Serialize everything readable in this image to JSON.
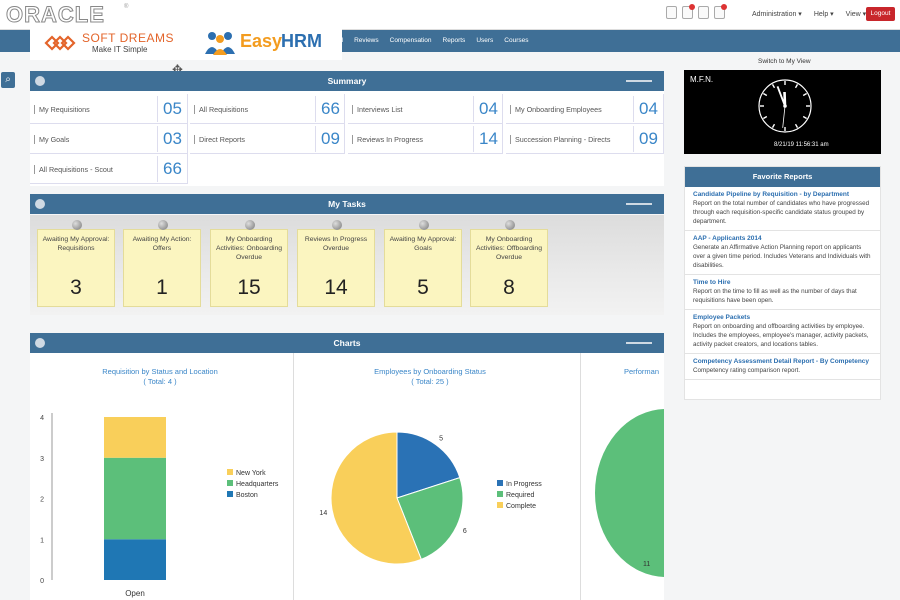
{
  "header": {
    "oracle_logo": "ORACLE",
    "oracle_reg": "®",
    "menu": [
      "Administration ▾",
      "Help ▾",
      "View ▾"
    ],
    "logout_label": "Logout",
    "nav_items": [
      "al",
      "Reviews",
      "Compensation",
      "Reports",
      "Users",
      "Courses"
    ]
  },
  "brand": {
    "softdreams_name": "SOFT DREAMS",
    "softdreams_tagline": "Make IT Simple",
    "easy": "Easy",
    "hrm": "HRM"
  },
  "summary": {
    "title": "Summary",
    "cells": [
      {
        "label": "My Requisitions",
        "value": "05"
      },
      {
        "label": "All Requisitions",
        "value": "66"
      },
      {
        "label": "Interviews List",
        "value": "04"
      },
      {
        "label": "My Onboarding Employees",
        "value": "04"
      },
      {
        "label": "My Goals",
        "value": "03"
      },
      {
        "label": "Direct Reports",
        "value": "09"
      },
      {
        "label": "Reviews In Progress",
        "value": "14"
      },
      {
        "label": "Succession Planning - Directs",
        "value": "09"
      },
      {
        "label": "All Requisitions - Scout",
        "value": "66"
      }
    ]
  },
  "tasks": {
    "title": "My Tasks",
    "notes": [
      {
        "label": "Awaiting My Approval: Requisitions",
        "count": "3"
      },
      {
        "label": "Awaiting My Action: Offers",
        "count": "1"
      },
      {
        "label": "My Onboarding Activities: Onboarding Overdue",
        "count": "15"
      },
      {
        "label": "Reviews In Progress Overdue",
        "count": "14"
      },
      {
        "label": "Awaiting My Approval: Goals",
        "count": "5"
      },
      {
        "label": "My Onboarding Activities: Offboarding Overdue",
        "count": "8"
      }
    ]
  },
  "charts": {
    "title": "Charts",
    "chart1_title": "Requisition by Status and Location",
    "chart1_subtitle": "( Total: 4 )",
    "chart2_title": "Employees by Onboarding Status",
    "chart2_subtitle": "( Total: 25 )",
    "chart3_title": "Performan"
  },
  "chart_data": [
    {
      "type": "bar",
      "title": "Requisition by Status and Location",
      "subtitle": "( Total: 4 )",
      "categories": [
        "Open"
      ],
      "stacked": true,
      "ylim": [
        0,
        4
      ],
      "yticks": [
        "0",
        "1",
        "2",
        "3",
        "4"
      ],
      "series": [
        {
          "name": "Boston",
          "values": [
            1
          ],
          "color": "#1f77b4"
        },
        {
          "name": "Headquarters",
          "values": [
            2
          ],
          "color": "#5cbf7a"
        },
        {
          "name": "New York",
          "values": [
            1
          ],
          "color": "#f9cf5a"
        }
      ],
      "legend_order": [
        "New York",
        "Headquarters",
        "Boston"
      ],
      "legend": "right"
    },
    {
      "type": "pie",
      "title": "Employees by Onboarding Status",
      "subtitle": "( Total: 25 )",
      "labels": [
        "In Progress",
        "Required",
        "Complete"
      ],
      "values": [
        5,
        6,
        14
      ],
      "colors": [
        "#2a72b5",
        "#5cbf7a",
        "#f9cf5a"
      ],
      "legend": "right"
    },
    {
      "type": "pie",
      "title": "Performan",
      "values": [
        11
      ],
      "colors": [
        "#5cbf7a"
      ],
      "partial_view": true
    }
  ],
  "right": {
    "switch_label": "Switch to My View",
    "clock_name": "M.F.N.",
    "clock_time": "8/21/19 11:56:31 am",
    "clock_hour": 11,
    "clock_minute": 56,
    "clock_second": 31,
    "favorites_title": "Favorite Reports",
    "reports": [
      {
        "title": "Candidate Pipeline by Requisition - by Department",
        "desc": "Report on the total number of candidates who have progressed through each requisition-specific candidate status grouped by department."
      },
      {
        "title": "AAP - Applicants 2014",
        "desc": "Generate an Affirmative Action Planning report on applicants over a given time period. Includes Veterans and Individuals with disabilities."
      },
      {
        "title": "Time to Hire",
        "desc": "Report on the time to fill as well as the number of days that requisitions have been open."
      },
      {
        "title": "Employee Packets",
        "desc": "Report on onboarding and offboarding activities by employee. Includes the employees, employee's manager, activity packets, activity packet creators, and locations tables."
      },
      {
        "title": "Competency Assessment Detail Report - By Competency",
        "desc": "Competency rating comparison report."
      }
    ]
  },
  "colors": {
    "primary": "#3f6f96",
    "accent_number": "#3a86c8",
    "logout": "#c8262b",
    "note": "#fbf5c0"
  }
}
